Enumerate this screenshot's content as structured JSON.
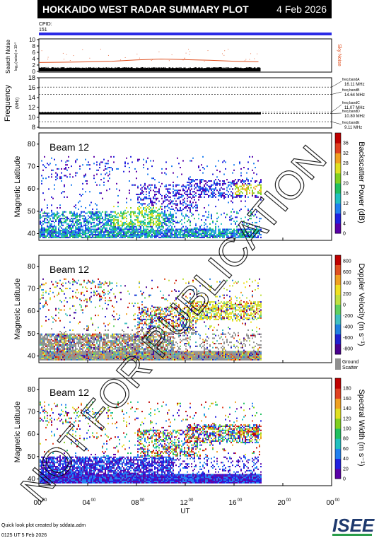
{
  "header": {
    "title": "HOKKAIDO WEST RADAR SUMMARY PLOT",
    "date": "4 Feb 2026",
    "cpid_label": "CPID:",
    "cpid_value": "151"
  },
  "panels": {
    "noise": {
      "ylabel": "Search Noise",
      "ylabel_sub": "log₁₀(noise) x 10¹⁰",
      "right_label": "Sky Noise",
      "yticks": [
        "0",
        "2",
        "4",
        "6",
        "8",
        "10"
      ],
      "ylim": [
        0,
        10
      ]
    },
    "frequency": {
      "ylabel": "Frequency",
      "ylabel_sub": "(MHz)",
      "yticks": [
        "8",
        "10",
        "12",
        "14",
        "16",
        "18"
      ],
      "ylim": [
        8,
        18
      ],
      "bands": [
        {
          "name": "freq bandA",
          "value": "16.11 MHz"
        },
        {
          "name": "freq bandB",
          "value": "14.64 MHz"
        },
        {
          "name": "freq bandC",
          "value": "11.07 MHz"
        },
        {
          "name": "freq bandD",
          "value": "10.80 MHz"
        },
        {
          "name": "freq bandE",
          "value": "9.11 MHz"
        }
      ]
    },
    "power": {
      "beam": "Beam 12",
      "ylabel": "Magnetic Latitude",
      "yticks": [
        "40",
        "50",
        "60",
        "70",
        "80"
      ],
      "cbar_label": "Backscatter Power (dB)",
      "cbar_ticks": [
        "0",
        "4",
        "8",
        "12",
        "16",
        "20",
        "24",
        "28",
        "32",
        "36"
      ]
    },
    "velocity": {
      "beam": "Beam 12",
      "ylabel": "Magnetic Latitude",
      "yticks": [
        "40",
        "50",
        "60",
        "70",
        "80"
      ],
      "cbar_label": "Doppler Velocity (m s⁻¹)",
      "cbar_ticks": [
        "800",
        "600",
        "400",
        "200",
        "0",
        "-200",
        "-400",
        "-600",
        "-800"
      ],
      "ground_label": "Ground",
      "ground_label2": "Scatter"
    },
    "width": {
      "beam": "Beam 12",
      "ylabel": "Magnetic Latitude",
      "yticks": [
        "40",
        "50",
        "60",
        "70",
        "80"
      ],
      "cbar_label": "Spectral Width (m s⁻¹)",
      "cbar_ticks": [
        "0",
        "20",
        "40",
        "60",
        "80",
        "100",
        "120",
        "140",
        "160",
        "180"
      ]
    }
  },
  "xaxis": {
    "label": "UT",
    "ticks": [
      "00",
      "04",
      "08",
      "12",
      "16",
      "20",
      "00"
    ],
    "tick_sup": "00"
  },
  "footer": {
    "line1": "Quick look plot created by sddata.adm",
    "line2": "0125 UT 5 Feb 2026",
    "logo": "ISEE"
  },
  "watermark": "NOT FOR PUBLICATION",
  "colors": {
    "cpid_bar": "#2a2ae6",
    "noise": "#e05020",
    "ground_scatter": "#909090",
    "power_scale": [
      "#5a00a8",
      "#2020e0",
      "#2080f0",
      "#20c0c0",
      "#20c060",
      "#80d020",
      "#e0e020",
      "#f0a020",
      "#e04020",
      "#c00000"
    ],
    "velocity_scale": [
      "#4a0090",
      "#2020d0",
      "#2080e0",
      "#40c0c0",
      "#60d060",
      "#c0e040",
      "#f0e020",
      "#f0a020",
      "#e05020",
      "#c00000"
    ]
  },
  "chart_data": [
    {
      "type": "line",
      "name": "search-noise",
      "ylabel": "Search Noise",
      "ylim": [
        0,
        10
      ],
      "x_hours": [
        0,
        2,
        4,
        6,
        8,
        10,
        12,
        14,
        16,
        18
      ],
      "search_noise": [
        1.0,
        1.0,
        1.0,
        1.1,
        1.1,
        1.1,
        1.0,
        1.0,
        1.0,
        1.0
      ],
      "sky_noise": [
        2.8,
        2.9,
        3.0,
        3.2,
        3.6,
        3.9,
        3.7,
        3.5,
        3.2,
        3.0
      ]
    },
    {
      "type": "line",
      "name": "frequency",
      "ylabel": "Frequency",
      "ylim": [
        8,
        18
      ],
      "x_hours": [
        0,
        18
      ],
      "values": [
        10.8,
        10.8
      ]
    },
    {
      "type": "heatmap",
      "name": "backscatter-power",
      "beam": "Beam 12",
      "ylabel": "Magnetic Latitude",
      "ylim": [
        37,
        85
      ],
      "data_end_hour": 18.2
    },
    {
      "type": "heatmap",
      "name": "doppler-velocity",
      "beam": "Beam 12",
      "ylabel": "Magnetic Latitude",
      "ylim": [
        37,
        85
      ],
      "data_end_hour": 18.2
    },
    {
      "type": "heatmap",
      "name": "spectral-width",
      "beam": "Beam 12",
      "ylabel": "Magnetic Latitude",
      "ylim": [
        37,
        85
      ],
      "data_end_hour": 18.2
    }
  ]
}
